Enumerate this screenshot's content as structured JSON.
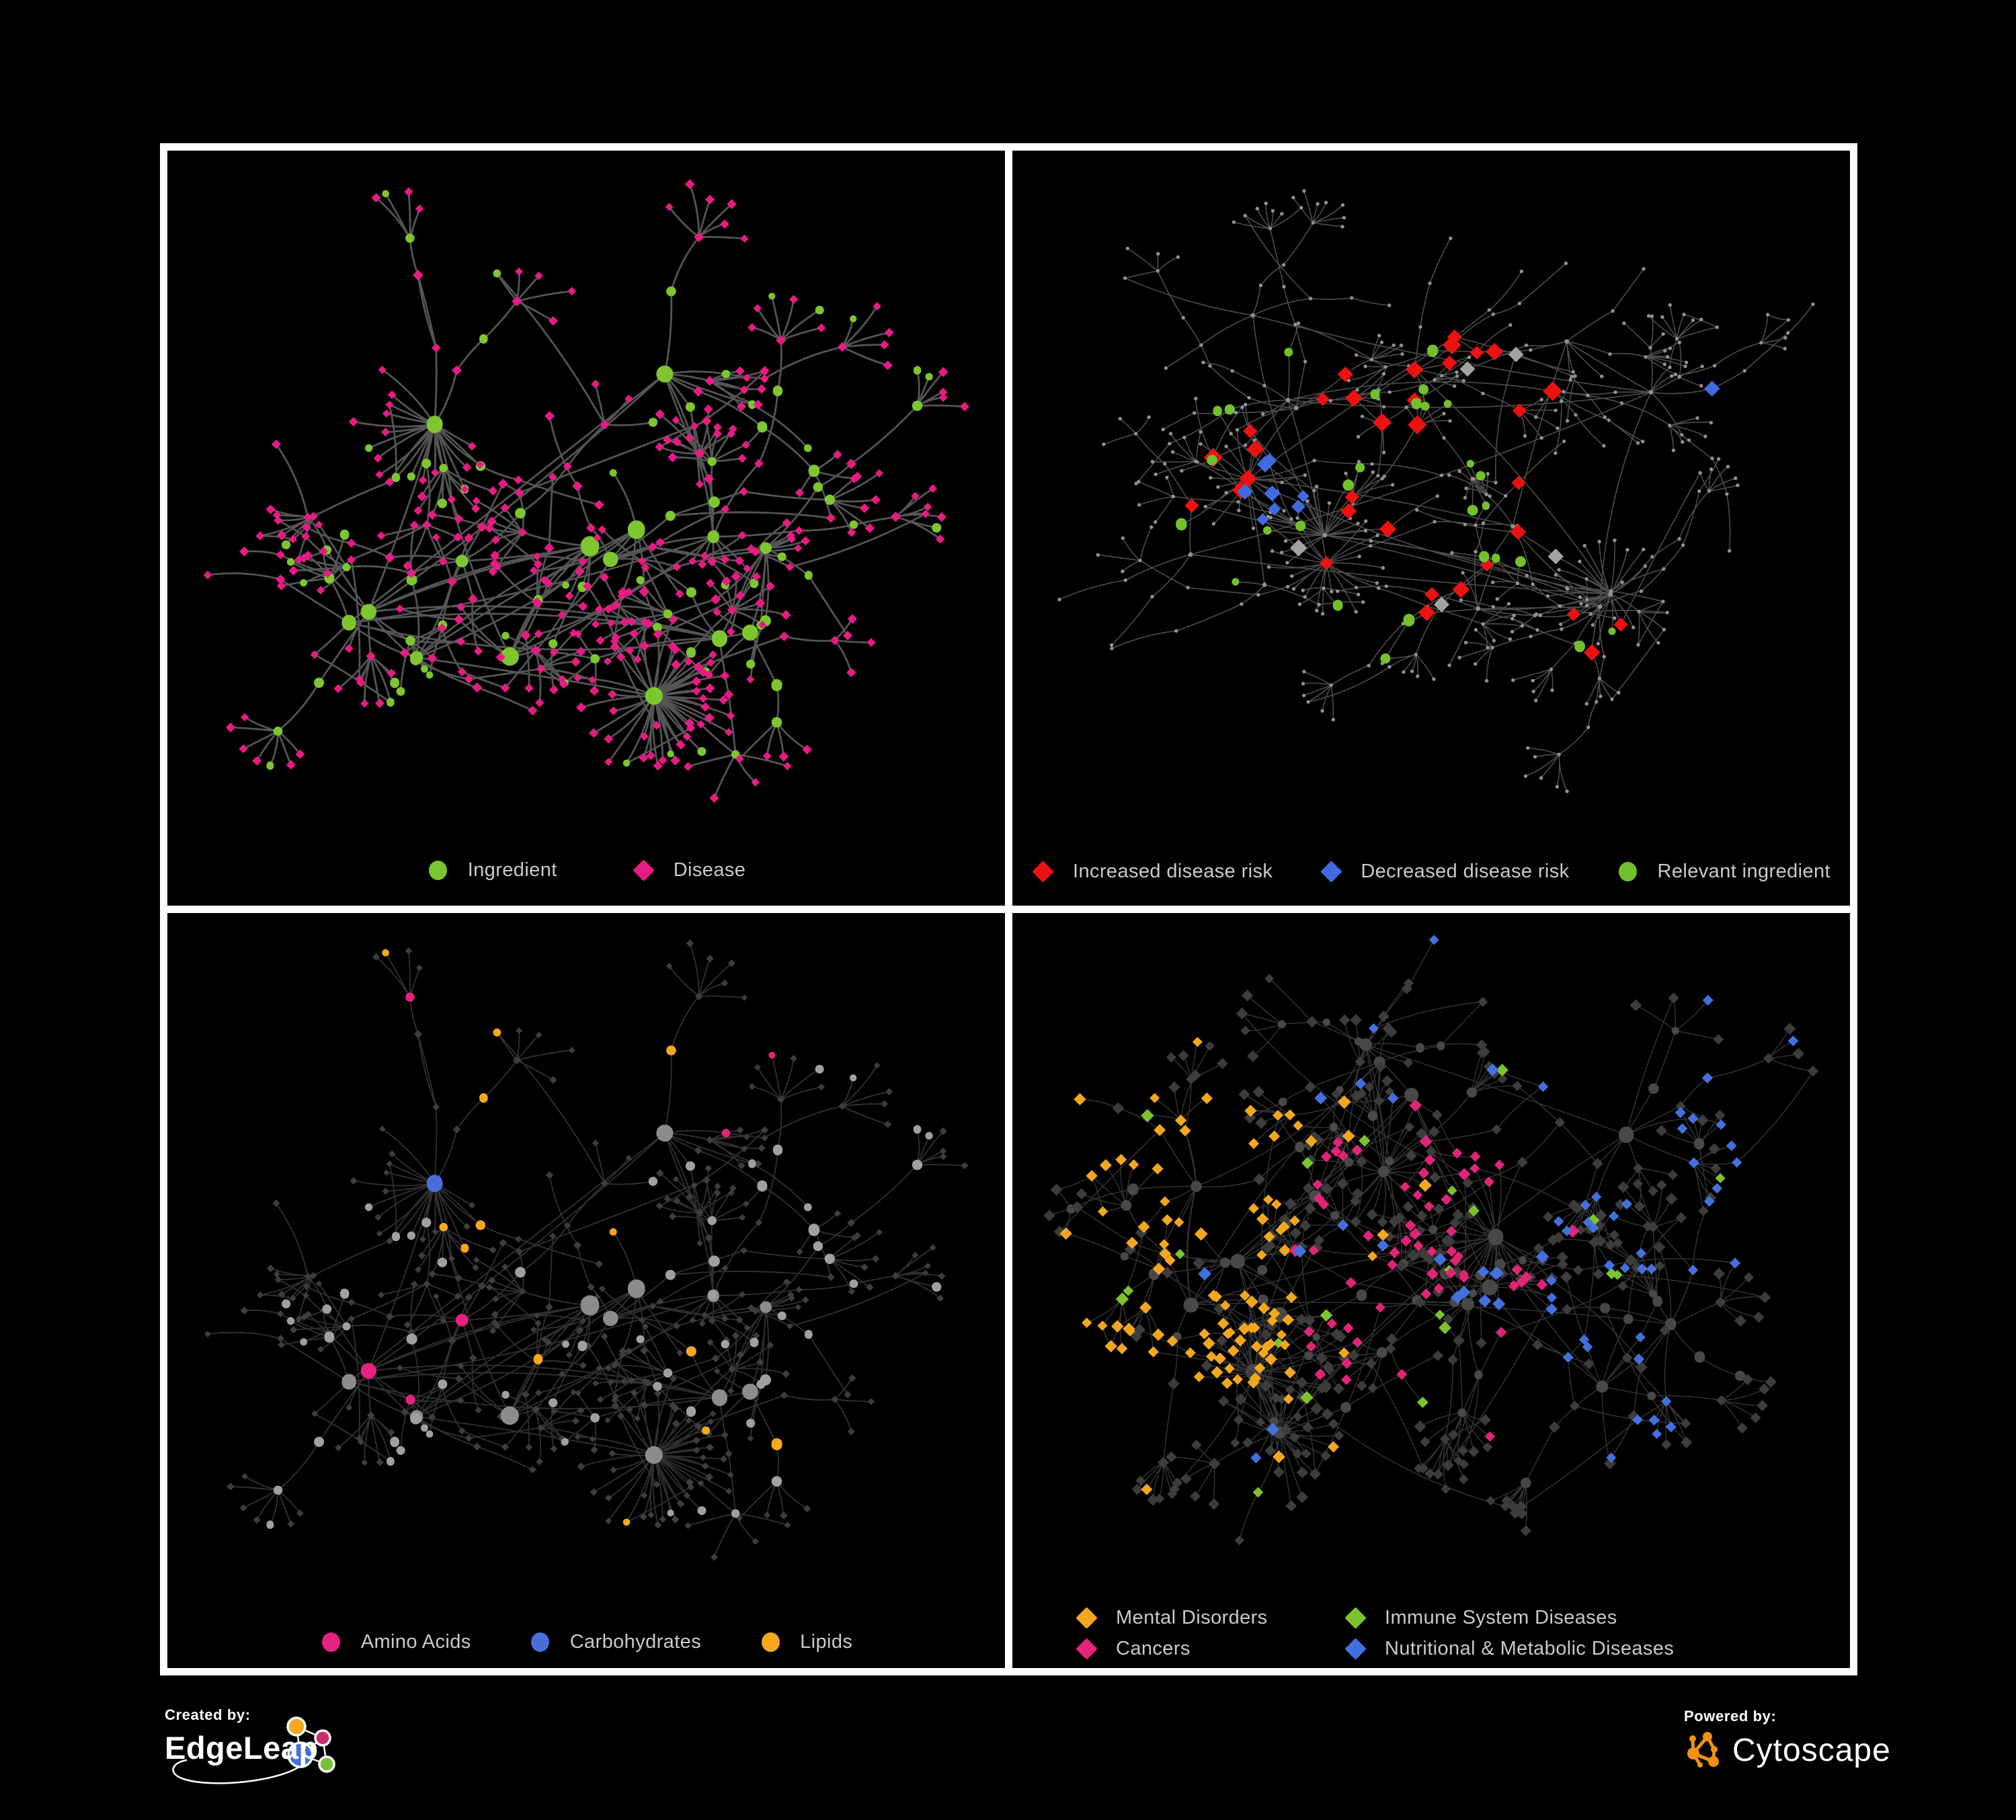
{
  "figure": {
    "background": "#000000",
    "frame_color": "#ffffff",
    "legend_text_color": "#c9c9c9"
  },
  "panels": [
    {
      "name": "ingredient-disease-network",
      "legend": {
        "items": [
          {
            "label": "Ingredient",
            "shape": "circle",
            "color": "#7dc62f"
          },
          {
            "label": "Disease",
            "shape": "diamond",
            "color": "#e61b84"
          }
        ]
      },
      "network": {
        "style": "ingredient-disease",
        "seed": 101,
        "hubs": 15,
        "spread": 340,
        "hub_links": 8,
        "branch_min": 3,
        "branch_var": 5,
        "steps_var": 3,
        "len_min": 45,
        "len_var": 75,
        "fan_prob": 0.5,
        "fan_min": 3,
        "fan_var": 6,
        "leaf_min": 34,
        "leaf_var": 40,
        "super_fans": 3,
        "web": 30,
        "edge": {
          "color": "#5d5d5d",
          "width": 2.8,
          "opacity": 0.9
        },
        "palette": {
          "ingredient": "#7dc62f",
          "disease": "#e61b84"
        }
      }
    },
    {
      "name": "disease-risk-network",
      "legend": {
        "items": [
          {
            "label": "Increased disease risk",
            "shape": "diamond",
            "color": "#ed1212"
          },
          {
            "label": "Decreased disease risk",
            "shape": "diamond",
            "color": "#406ae0"
          },
          {
            "label": "Relevant ingredient",
            "shape": "circle",
            "color": "#72c02c"
          }
        ]
      },
      "network": {
        "style": "risk",
        "seed": 202,
        "hubs": 18,
        "spread": 360,
        "hub_links": 6,
        "branch_min": 3,
        "branch_var": 5,
        "steps_var": 4,
        "len_min": 40,
        "len_var": 70,
        "fan_prob": 0.45,
        "fan_min": 3,
        "fan_var": 5,
        "leaf_min": 30,
        "leaf_var": 36,
        "super_fans": 4,
        "web": 24,
        "edge": {
          "color": "#5f5f5f",
          "width": 1.6,
          "opacity": 0.8
        },
        "palette": {
          "base": "#909090",
          "increased": "#ed1212",
          "decreased": "#406ae0",
          "neutral": "#a2a2a2",
          "relevant": "#72c02c"
        }
      }
    },
    {
      "name": "nutrient-classes-network",
      "legend": {
        "items": [
          {
            "label": "Amino Acids",
            "shape": "circle",
            "color": "#e6217e"
          },
          {
            "label": "Carbohydrates",
            "shape": "circle",
            "color": "#4a6ed8"
          },
          {
            "label": "Lipids",
            "shape": "circle",
            "color": "#f5a71d"
          }
        ]
      },
      "network": {
        "style": "nutrient",
        "seed": 101,
        "hubs": 15,
        "spread": 340,
        "hub_links": 8,
        "branch_min": 3,
        "branch_var": 5,
        "steps_var": 3,
        "len_min": 45,
        "len_var": 75,
        "fan_prob": 0.5,
        "fan_min": 3,
        "fan_var": 6,
        "leaf_min": 34,
        "leaf_var": 40,
        "super_fans": 3,
        "web": 30,
        "edge": {
          "color": "#9a9a9a",
          "width": 1.9,
          "opacity": 0.3
        },
        "palette": {
          "circle": "#a0a0a0",
          "hub": "#8c8c8c",
          "diamond": "#3d3d3d",
          "amino": "#e6217e",
          "carb": "#4a6ed8",
          "lipid": "#f5a71d"
        }
      }
    },
    {
      "name": "disease-classes-network",
      "legend": {
        "items": [
          {
            "label": "Mental Disorders",
            "shape": "diamond",
            "color": "#f2a71f"
          },
          {
            "label": "Immune System Diseases",
            "shape": "diamond",
            "color": "#7cc32e"
          },
          {
            "label": "Cancers",
            "shape": "diamond",
            "color": "#e02478"
          },
          {
            "label": "Nutritional & Metabolic Diseases",
            "shape": "diamond",
            "color": "#4470dd"
          }
        ]
      },
      "network": {
        "style": "disease-class",
        "seed": 404,
        "hubs": 17,
        "spread": 330,
        "hub_links": 10,
        "branch_min": 4,
        "branch_var": 5,
        "steps_var": 3,
        "len_min": 42,
        "len_var": 66,
        "fan_prob": 0.5,
        "fan_min": 3,
        "fan_var": 6,
        "leaf_min": 30,
        "leaf_var": 38,
        "super_fans": 4,
        "web": 80,
        "edge": {
          "color": "#9a9a9a",
          "width": 1.5,
          "opacity": 0.32
        },
        "palette": {
          "diamond": "#3c3c3c",
          "circle": "#484848",
          "mental": "#f2a71f",
          "immune": "#7cc32e",
          "cancer": "#e02478",
          "nutritional": "#4470dd"
        }
      }
    }
  ],
  "footer": {
    "created_by": {
      "label": "Created by:",
      "brand": "EdgeLeap",
      "logo_colors": {
        "orange": "#f5a623",
        "magenta": "#cf2a6e",
        "blue": "#4a6fd4",
        "green": "#76c13a",
        "line": "#ffffff"
      }
    },
    "powered_by": {
      "label": "Powered by:",
      "brand": "Cytoscape",
      "logo_color": "#f29111"
    }
  }
}
